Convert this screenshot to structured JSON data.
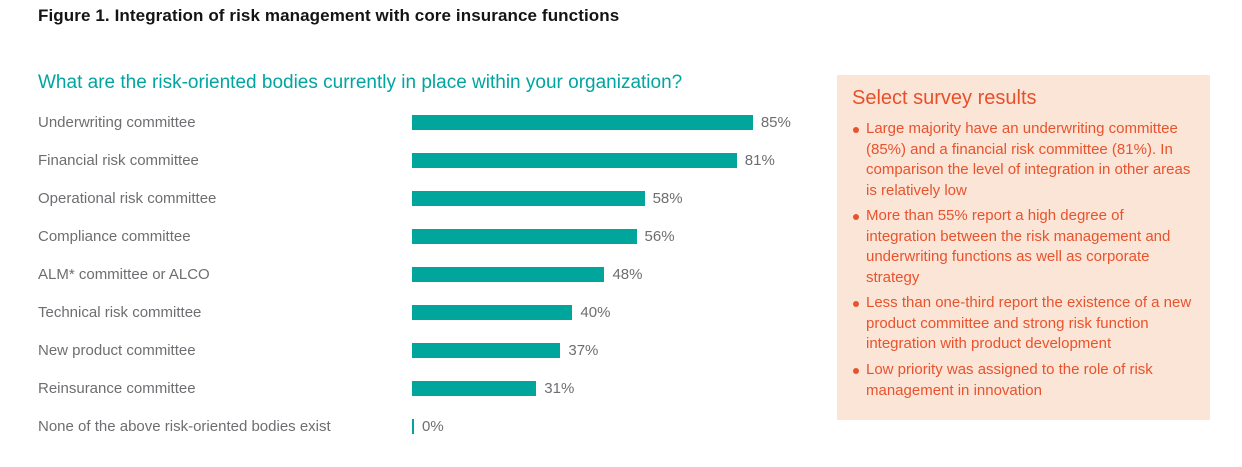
{
  "figure": {
    "title": "Figure 1. Integration of risk management with core insurance functions"
  },
  "chart_data": {
    "type": "bar",
    "orientation": "horizontal",
    "title": "What are the risk-oriented bodies currently in place within your organization?",
    "categories": [
      "Underwriting committee",
      "Financial risk committee",
      "Operational risk committee",
      "Compliance committee",
      "ALM* committee or ALCO",
      "Technical risk committee",
      "New product committee",
      "Reinsurance committee",
      "None of the above risk-oriented bodies exist"
    ],
    "values": [
      85,
      81,
      58,
      56,
      48,
      40,
      37,
      31,
      0
    ],
    "value_labels": [
      "85%",
      "81%",
      "58%",
      "56%",
      "48%",
      "40%",
      "37%",
      "31%",
      "0%"
    ],
    "xlabel": "",
    "ylabel": "",
    "xlim": [
      0,
      100
    ],
    "grid": false,
    "legend": false,
    "bar_color": "#00a69c",
    "label_color": "#6d6e71"
  },
  "panel": {
    "title": "Select survey results",
    "bullets": [
      "Large majority have an underwriting committee (85%) and a financial risk committee (81%). In comparison the level of integration in other areas is relatively low",
      "More than 55% report a high degree of integration between the risk management and underwriting functions as well as corporate strategy",
      "Less than one-third report the existence of a new product committee and strong risk function integration with product development",
      "Low priority was assigned to the role of risk management in innovation"
    ],
    "background_color": "#fbe5d6",
    "text_color": "#e8532e"
  },
  "colors": {
    "teal_accent": "#00a69c",
    "teal_heading": "#00a5a0",
    "orange_accent": "#e8532e",
    "panel_background": "#fbe5d6",
    "label_gray": "#6d6e71",
    "title_black": "#141414"
  }
}
